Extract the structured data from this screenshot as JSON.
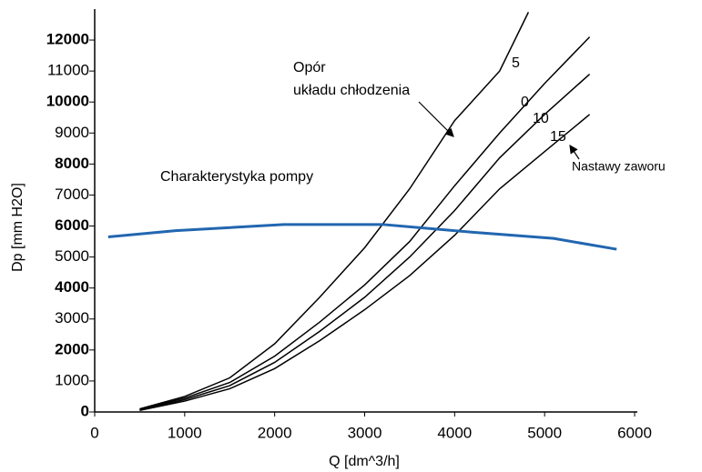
{
  "chart_data": {
    "type": "line",
    "x_label": "Q [dm^3/h]",
    "y_label": "Dp [mm H2O]",
    "annotations": [
      "Opór",
      "układu chłodzenia",
      "Nastawy zaworu"
    ],
    "xlim": [
      0,
      6000
    ],
    "xticks": [
      0,
      1000,
      2000,
      3000,
      4000,
      5000,
      6000
    ],
    "ylim": [
      0,
      13000
    ],
    "yticks": [
      0,
      1000,
      2000,
      3000,
      4000,
      5000,
      6000,
      7000,
      8000,
      9000,
      10000,
      11000,
      12000
    ],
    "series": [
      {
        "name": "5",
        "color": "#000000",
        "x": [
          500,
          1000,
          1500,
          2000,
          2500,
          3000,
          3500,
          4000,
          4500,
          4820
        ],
        "values": [
          100,
          500,
          1100,
          2200,
          3700,
          5300,
          7200,
          9400,
          11000,
          12900
        ]
      },
      {
        "name": "0",
        "color": "#000000",
        "x": [
          500,
          1000,
          1500,
          2000,
          2500,
          3000,
          3500,
          4000,
          4500,
          5000,
          5500
        ],
        "values": [
          80,
          450,
          950,
          1800,
          2900,
          4100,
          5500,
          7300,
          9000,
          10600,
          12100
        ]
      },
      {
        "name": "10",
        "color": "#000000",
        "x": [
          500,
          1000,
          1500,
          2000,
          2500,
          3000,
          3500,
          4000,
          4500,
          5000,
          5500
        ],
        "values": [
          60,
          400,
          850,
          1600,
          2600,
          3700,
          5000,
          6500,
          8200,
          9600,
          10900
        ]
      },
      {
        "name": "15",
        "color": "#000000",
        "x": [
          500,
          1000,
          1500,
          2000,
          2500,
          3000,
          3500,
          4000,
          4500,
          5000,
          5500
        ],
        "values": [
          50,
          350,
          750,
          1400,
          2300,
          3300,
          4400,
          5700,
          7200,
          8400,
          9600
        ]
      },
      {
        "name": "Charakterystyka pompy",
        "color": "#2266b0",
        "x": [
          150,
          900,
          2100,
          3200,
          3600,
          4200,
          5100,
          5800
        ],
        "values": [
          5650,
          5850,
          6050,
          6050,
          5950,
          5800,
          5600,
          5250
        ]
      }
    ]
  }
}
